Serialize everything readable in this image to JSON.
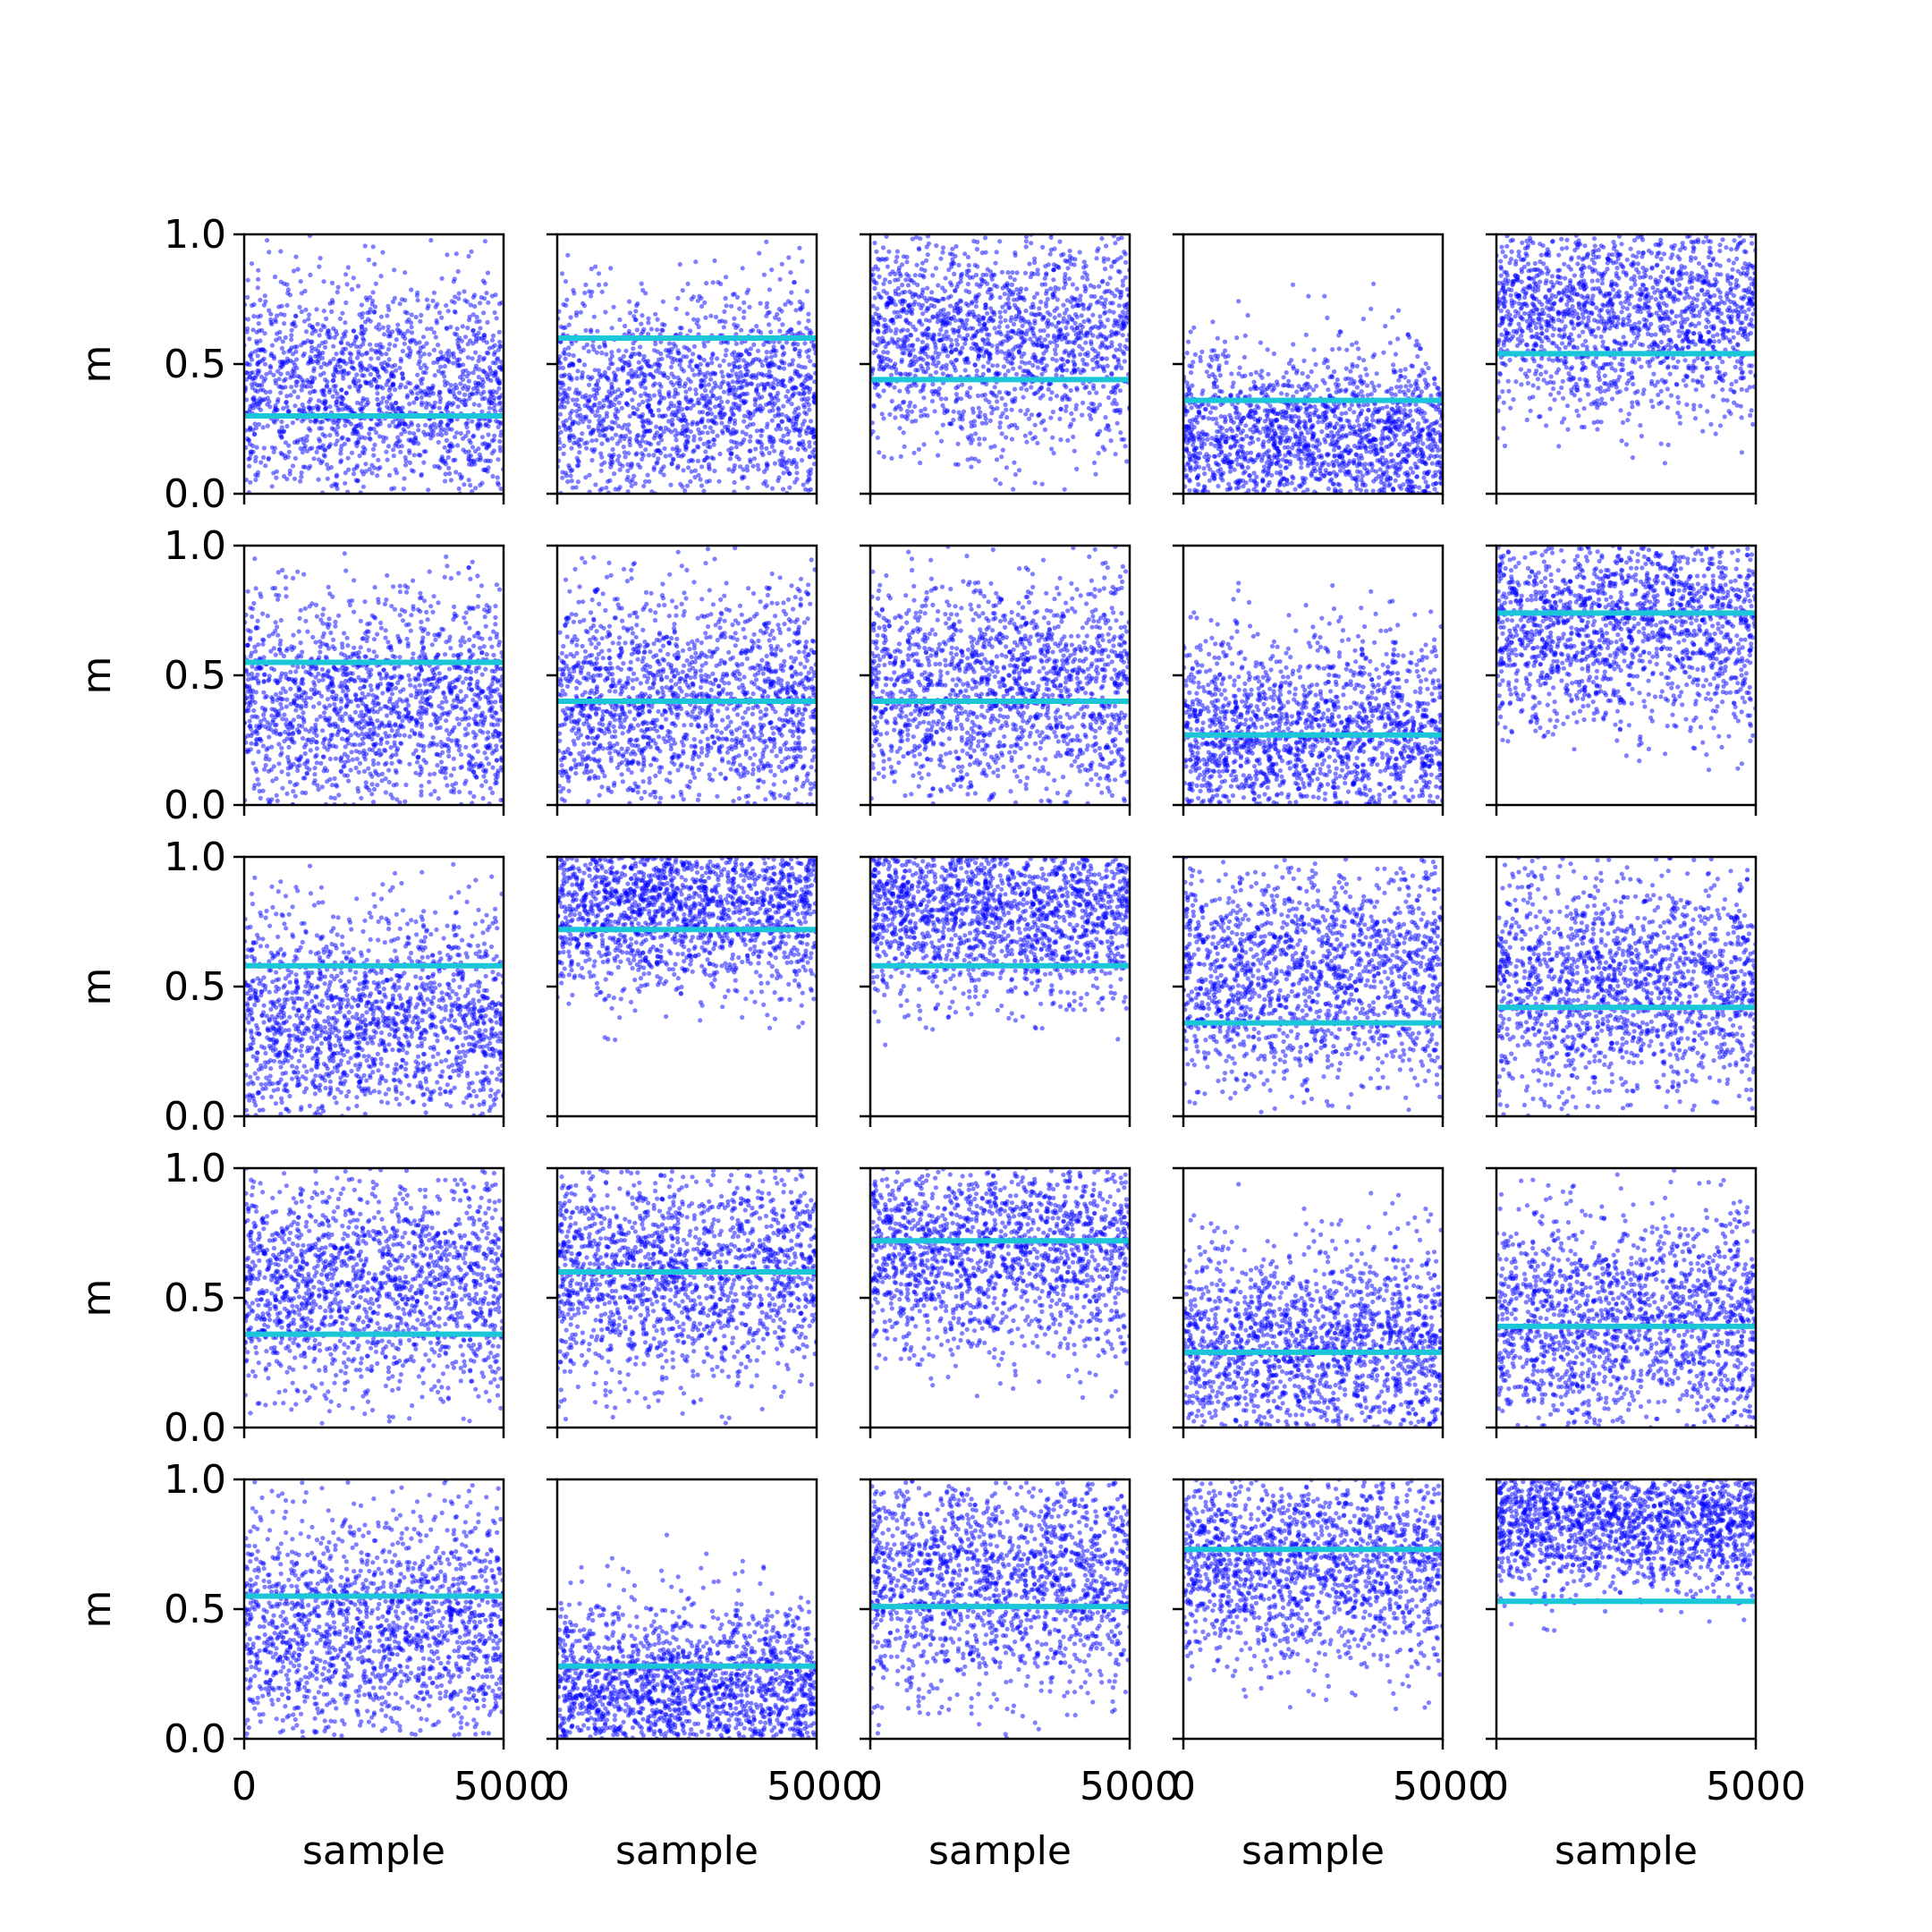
{
  "figure": {
    "layout": "5x5 grid of scatter subplots, shared axes",
    "point_color": "#0000ff",
    "point_alpha": 0.5,
    "line_color": "#1ac6d8",
    "background": "#ffffff"
  },
  "chart_data": {
    "type": "scatter",
    "rows": 5,
    "cols": 5,
    "samples_per_panel": 5000,
    "x_label": "sample",
    "y_label": "m",
    "xlim": [
      0,
      5000
    ],
    "ylim": [
      0.0,
      1.0
    ],
    "x_tick_labels": [
      "0",
      "5000"
    ],
    "y_tick_labels": [
      "0.0",
      "0.5",
      "1.0"
    ],
    "grid": false,
    "panels": [
      {
        "row": 1,
        "col": 1,
        "reference_line": 0.3,
        "cloud_center": 0.38,
        "cloud_spread": 0.22
      },
      {
        "row": 1,
        "col": 2,
        "reference_line": 0.6,
        "cloud_center": 0.35,
        "cloud_spread": 0.22
      },
      {
        "row": 1,
        "col": 3,
        "reference_line": 0.44,
        "cloud_center": 0.6,
        "cloud_spread": 0.22
      },
      {
        "row": 1,
        "col": 4,
        "reference_line": 0.36,
        "cloud_center": 0.2,
        "cloud_spread": 0.17
      },
      {
        "row": 1,
        "col": 5,
        "reference_line": 0.54,
        "cloud_center": 0.7,
        "cloud_spread": 0.2
      },
      {
        "row": 2,
        "col": 1,
        "reference_line": 0.55,
        "cloud_center": 0.38,
        "cloud_spread": 0.22
      },
      {
        "row": 2,
        "col": 2,
        "reference_line": 0.4,
        "cloud_center": 0.4,
        "cloud_spread": 0.22
      },
      {
        "row": 2,
        "col": 3,
        "reference_line": 0.4,
        "cloud_center": 0.45,
        "cloud_spread": 0.22
      },
      {
        "row": 2,
        "col": 4,
        "reference_line": 0.27,
        "cloud_center": 0.25,
        "cloud_spread": 0.19
      },
      {
        "row": 2,
        "col": 5,
        "reference_line": 0.74,
        "cloud_center": 0.7,
        "cloud_spread": 0.2
      },
      {
        "row": 3,
        "col": 1,
        "reference_line": 0.58,
        "cloud_center": 0.35,
        "cloud_spread": 0.22
      },
      {
        "row": 3,
        "col": 2,
        "reference_line": 0.72,
        "cloud_center": 0.82,
        "cloud_spread": 0.17
      },
      {
        "row": 3,
        "col": 3,
        "reference_line": 0.58,
        "cloud_center": 0.8,
        "cloud_spread": 0.18
      },
      {
        "row": 3,
        "col": 4,
        "reference_line": 0.36,
        "cloud_center": 0.55,
        "cloud_spread": 0.22
      },
      {
        "row": 3,
        "col": 5,
        "reference_line": 0.42,
        "cloud_center": 0.5,
        "cloud_spread": 0.22
      },
      {
        "row": 4,
        "col": 1,
        "reference_line": 0.36,
        "cloud_center": 0.55,
        "cloud_spread": 0.22
      },
      {
        "row": 4,
        "col": 2,
        "reference_line": 0.6,
        "cloud_center": 0.6,
        "cloud_spread": 0.22
      },
      {
        "row": 4,
        "col": 3,
        "reference_line": 0.72,
        "cloud_center": 0.68,
        "cloud_spread": 0.2
      },
      {
        "row": 4,
        "col": 4,
        "reference_line": 0.29,
        "cloud_center": 0.3,
        "cloud_spread": 0.2
      },
      {
        "row": 4,
        "col": 5,
        "reference_line": 0.39,
        "cloud_center": 0.4,
        "cloud_spread": 0.22
      },
      {
        "row": 5,
        "col": 1,
        "reference_line": 0.55,
        "cloud_center": 0.42,
        "cloud_spread": 0.22
      },
      {
        "row": 5,
        "col": 2,
        "reference_line": 0.28,
        "cloud_center": 0.18,
        "cloud_spread": 0.17
      },
      {
        "row": 5,
        "col": 3,
        "reference_line": 0.51,
        "cloud_center": 0.62,
        "cloud_spread": 0.22
      },
      {
        "row": 5,
        "col": 4,
        "reference_line": 0.73,
        "cloud_center": 0.68,
        "cloud_spread": 0.2
      },
      {
        "row": 5,
        "col": 5,
        "reference_line": 0.53,
        "cloud_center": 0.85,
        "cloud_spread": 0.14
      }
    ]
  }
}
